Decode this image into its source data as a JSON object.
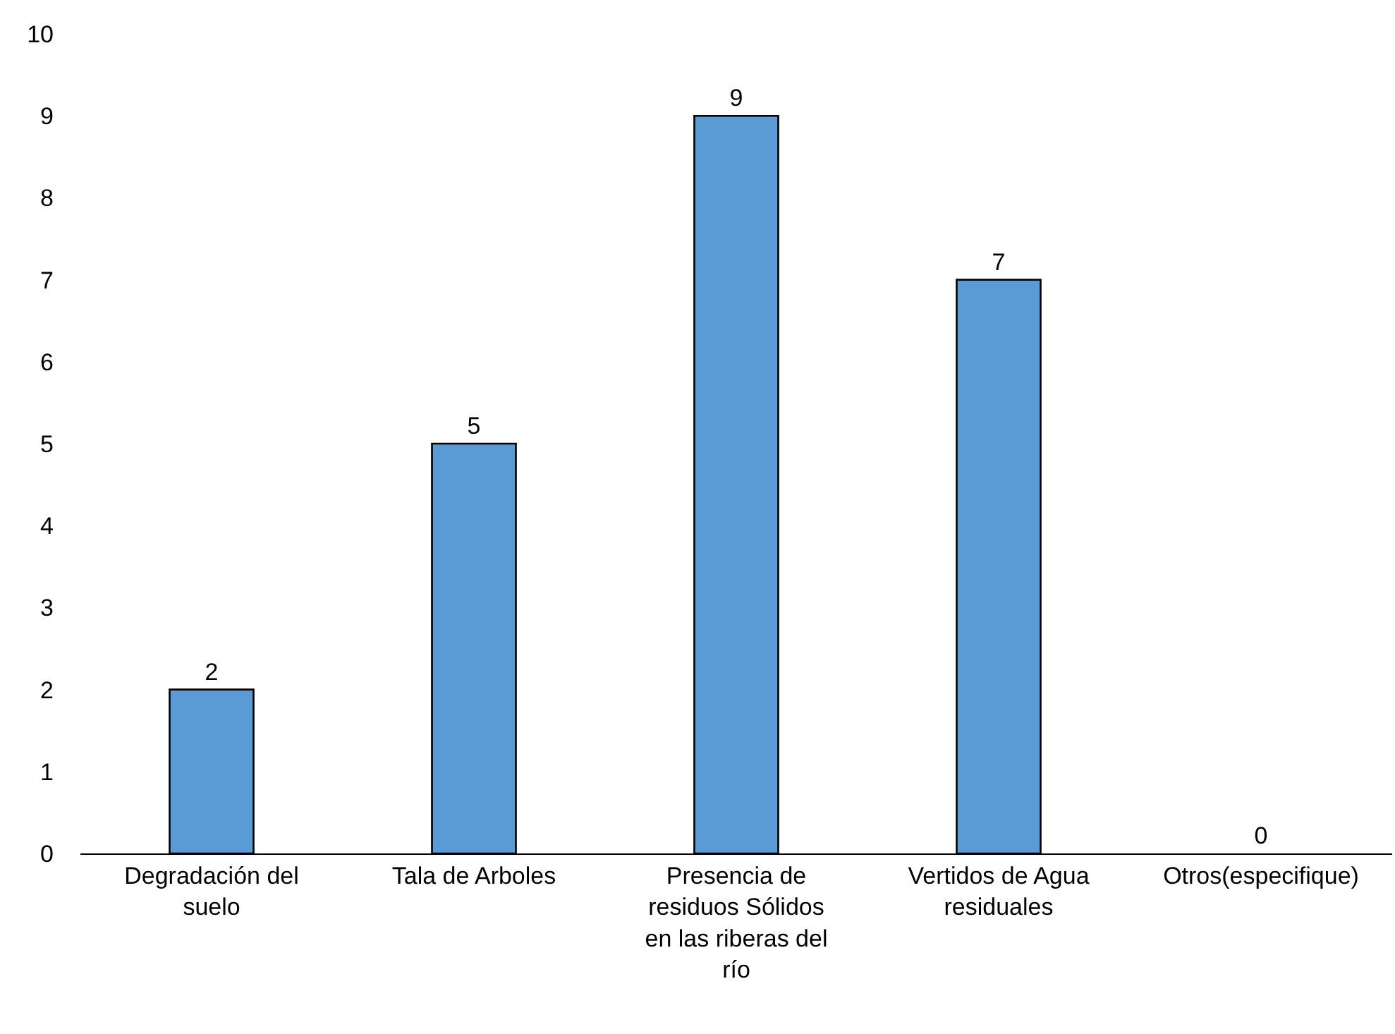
{
  "chart_data": {
    "type": "bar",
    "categories": [
      "Degradación del suelo",
      "Tala de Arboles",
      "Presencia de residuos Sólidos en las riberas del río",
      "Vertidos de Agua residuales",
      "Otros(especifique)"
    ],
    "values": [
      2,
      5,
      9,
      7,
      0
    ],
    "color": "#5b9bd5",
    "ylim": [
      0,
      10
    ],
    "yticks": [
      0,
      1,
      2,
      3,
      4,
      5,
      6,
      7,
      8,
      9,
      10
    ],
    "data_labels": true
  }
}
